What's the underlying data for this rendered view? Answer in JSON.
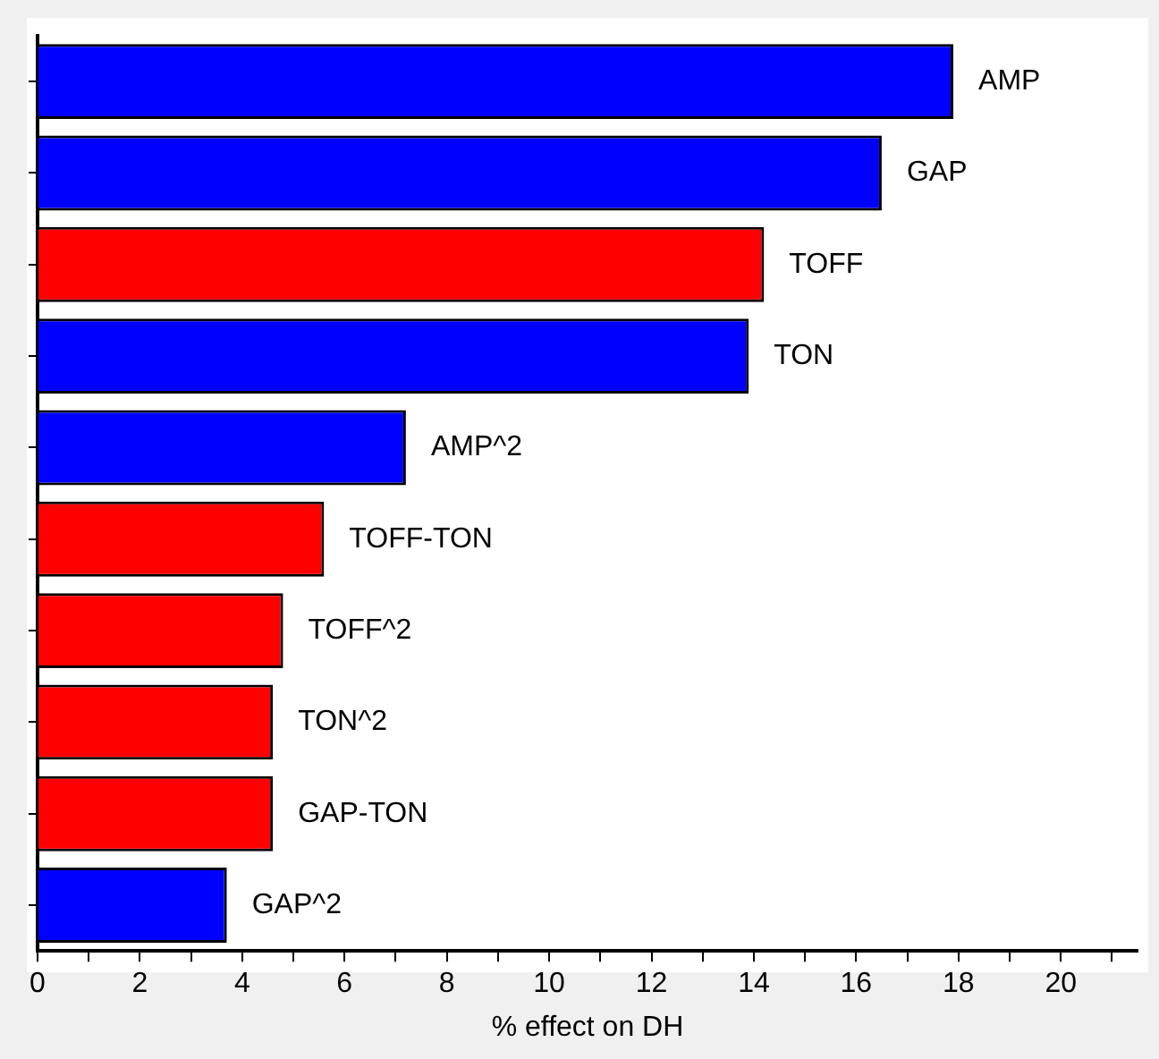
{
  "chart_data": {
    "type": "bar",
    "orientation": "horizontal",
    "xlabel": "% effect on DH",
    "categories": [
      "AMP",
      "GAP",
      "TOFF",
      "TON",
      "AMP^2",
      "TOFF-TON",
      "TOFF^2",
      "TON^2",
      "GAP-TON",
      "GAP^2"
    ],
    "values": [
      17.9,
      16.5,
      14.2,
      13.9,
      7.2,
      5.6,
      4.8,
      4.6,
      4.6,
      3.7
    ],
    "colors": [
      "#0000ff",
      "#0000ff",
      "#ff0000",
      "#0000ff",
      "#0000ff",
      "#ff0000",
      "#ff0000",
      "#ff0000",
      "#ff0000",
      "#0000ff"
    ],
    "xlim": [
      0,
      21.5
    ],
    "xticks": [
      0,
      {
        "value": 1,
        "label": null
      },
      2,
      {
        "value": 3,
        "label": null
      },
      4,
      {
        "value": 5,
        "label": null
      },
      6,
      {
        "value": 7,
        "label": null
      },
      8,
      {
        "value": 9,
        "label": null
      },
      10,
      {
        "value": 11,
        "label": null
      },
      12,
      {
        "value": 13,
        "label": null
      },
      14,
      {
        "value": 15,
        "label": null
      },
      16,
      {
        "value": 17,
        "label": null
      },
      18,
      {
        "value": 19,
        "label": null
      },
      20,
      {
        "value": 21,
        "label": null
      }
    ],
    "tick_labels": "x",
    "grid": false,
    "legend": false
  }
}
